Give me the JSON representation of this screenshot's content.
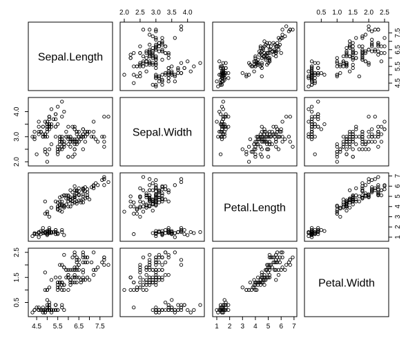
{
  "chart_data": {
    "type": "scatter",
    "variables": [
      "Sepal.Length",
      "Sepal.Width",
      "Petal.Length",
      "Petal.Width"
    ],
    "axis_ranges": {
      "Sepal.Length": [
        4.3,
        7.9
      ],
      "Sepal.Width": [
        2.0,
        4.4
      ],
      "Petal.Length": [
        1.0,
        6.9
      ],
      "Petal.Width": [
        0.1,
        2.5
      ]
    },
    "ticks": {
      "Sepal.Length": [
        "4.5",
        "5.0",
        "5.5",
        "6.0",
        "6.5",
        "7.0",
        "7.5"
      ],
      "Sepal.Width": [
        "2.0",
        "2.5",
        "3.0",
        "3.5",
        "4.0"
      ],
      "Petal.Length": [
        "1",
        "2",
        "3",
        "4",
        "5",
        "6",
        "7"
      ],
      "Petal.Width": [
        "0.5",
        "1.0",
        "1.5",
        "2.0",
        "2.5"
      ]
    },
    "bottom_tick_labels": {
      "Sepal.Length": [
        "4.5",
        "5.5",
        "6.5",
        "7.5"
      ],
      "Sepal.Width": [],
      "Petal.Length": [
        "1",
        "2",
        "3",
        "4",
        "5",
        "6",
        "7"
      ],
      "Petal.Width": []
    },
    "top_tick_labels": {
      "Sepal.Length": [],
      "Sepal.Width": [
        "2.0",
        "2.5",
        "3.0",
        "3.5",
        "4.0"
      ],
      "Petal.Length": [],
      "Petal.Width": [
        "0.5",
        "1.0",
        "1.5",
        "2.0",
        "2.5"
      ]
    },
    "left_tick_labels": {
      "Sepal.Length": [],
      "Sepal.Width": [
        "2.0",
        "3.0",
        "4.0"
      ],
      "Petal.Length": [],
      "Petal.Width": [
        "0.5",
        "1.5",
        "2.5"
      ]
    },
    "right_tick_labels": {
      "Sepal.Length": [
        "4.5",
        "5.5",
        "6.5",
        "7.5"
      ],
      "Sepal.Width": [],
      "Petal.Length": [
        "1",
        "2",
        "3",
        "4",
        "5",
        "6",
        "7"
      ],
      "Petal.Width": []
    },
    "points": [
      [
        5.1,
        3.5,
        1.4,
        0.2
      ],
      [
        4.9,
        3.0,
        1.4,
        0.2
      ],
      [
        4.7,
        3.2,
        1.3,
        0.2
      ],
      [
        4.6,
        3.1,
        1.5,
        0.2
      ],
      [
        5.0,
        3.6,
        1.4,
        0.2
      ],
      [
        5.4,
        3.9,
        1.7,
        0.4
      ],
      [
        4.6,
        3.4,
        1.4,
        0.3
      ],
      [
        5.0,
        3.4,
        1.5,
        0.2
      ],
      [
        4.4,
        2.9,
        1.4,
        0.2
      ],
      [
        4.9,
        3.1,
        1.5,
        0.1
      ],
      [
        5.4,
        3.7,
        1.5,
        0.2
      ],
      [
        4.8,
        3.4,
        1.6,
        0.2
      ],
      [
        4.8,
        3.0,
        1.4,
        0.1
      ],
      [
        4.3,
        3.0,
        1.1,
        0.1
      ],
      [
        5.8,
        4.0,
        1.2,
        0.2
      ],
      [
        5.7,
        4.4,
        1.5,
        0.4
      ],
      [
        5.4,
        3.9,
        1.3,
        0.4
      ],
      [
        5.1,
        3.5,
        1.4,
        0.3
      ],
      [
        5.7,
        3.8,
        1.7,
        0.3
      ],
      [
        5.1,
        3.8,
        1.5,
        0.3
      ],
      [
        5.4,
        3.4,
        1.7,
        0.2
      ],
      [
        5.1,
        3.7,
        1.5,
        0.4
      ],
      [
        4.6,
        3.6,
        1.0,
        0.2
      ],
      [
        5.1,
        3.3,
        1.7,
        0.5
      ],
      [
        4.8,
        3.4,
        1.9,
        0.2
      ],
      [
        5.0,
        3.0,
        1.6,
        0.2
      ],
      [
        5.0,
        3.4,
        1.6,
        0.4
      ],
      [
        5.2,
        3.5,
        1.5,
        0.2
      ],
      [
        5.2,
        3.4,
        1.4,
        0.2
      ],
      [
        4.7,
        3.2,
        1.6,
        0.2
      ],
      [
        4.8,
        3.1,
        1.6,
        0.2
      ],
      [
        5.4,
        3.4,
        1.5,
        0.4
      ],
      [
        5.2,
        4.1,
        1.5,
        0.1
      ],
      [
        5.5,
        4.2,
        1.4,
        0.2
      ],
      [
        4.9,
        3.1,
        1.5,
        0.2
      ],
      [
        5.0,
        3.2,
        1.2,
        0.2
      ],
      [
        5.5,
        3.5,
        1.3,
        0.2
      ],
      [
        4.9,
        3.6,
        1.4,
        0.1
      ],
      [
        4.4,
        3.0,
        1.3,
        0.2
      ],
      [
        5.1,
        3.4,
        1.5,
        0.2
      ],
      [
        5.0,
        3.5,
        1.3,
        0.3
      ],
      [
        4.5,
        2.3,
        1.3,
        0.3
      ],
      [
        4.4,
        3.2,
        1.3,
        0.2
      ],
      [
        5.0,
        3.5,
        1.6,
        0.6
      ],
      [
        5.1,
        3.8,
        1.9,
        0.4
      ],
      [
        4.8,
        3.0,
        1.4,
        0.3
      ],
      [
        5.1,
        3.8,
        1.6,
        0.2
      ],
      [
        4.6,
        3.2,
        1.4,
        0.2
      ],
      [
        5.3,
        3.7,
        1.5,
        0.2
      ],
      [
        5.0,
        3.3,
        1.4,
        0.2
      ],
      [
        7.0,
        3.2,
        4.7,
        1.4
      ],
      [
        6.4,
        3.2,
        4.5,
        1.5
      ],
      [
        6.9,
        3.1,
        4.9,
        1.5
      ],
      [
        5.5,
        2.3,
        4.0,
        1.3
      ],
      [
        6.5,
        2.8,
        4.6,
        1.5
      ],
      [
        5.7,
        2.8,
        4.5,
        1.3
      ],
      [
        6.3,
        3.3,
        4.7,
        1.6
      ],
      [
        4.9,
        2.4,
        3.3,
        1.0
      ],
      [
        6.6,
        2.9,
        4.6,
        1.3
      ],
      [
        5.2,
        2.7,
        3.9,
        1.4
      ],
      [
        5.0,
        2.0,
        3.5,
        1.0
      ],
      [
        5.9,
        3.0,
        4.2,
        1.5
      ],
      [
        6.0,
        2.2,
        4.0,
        1.0
      ],
      [
        6.1,
        2.9,
        4.7,
        1.4
      ],
      [
        5.6,
        2.9,
        3.6,
        1.3
      ],
      [
        6.7,
        3.1,
        4.4,
        1.4
      ],
      [
        5.6,
        3.0,
        4.5,
        1.5
      ],
      [
        5.8,
        2.7,
        4.1,
        1.0
      ],
      [
        6.2,
        2.2,
        4.5,
        1.5
      ],
      [
        5.6,
        2.5,
        3.9,
        1.1
      ],
      [
        5.9,
        3.2,
        4.8,
        1.8
      ],
      [
        6.1,
        2.8,
        4.0,
        1.3
      ],
      [
        6.3,
        2.5,
        4.9,
        1.5
      ],
      [
        6.1,
        2.8,
        4.7,
        1.2
      ],
      [
        6.4,
        2.9,
        4.3,
        1.3
      ],
      [
        6.6,
        3.0,
        4.4,
        1.4
      ],
      [
        6.8,
        2.8,
        4.8,
        1.4
      ],
      [
        6.7,
        3.0,
        5.0,
        1.7
      ],
      [
        6.0,
        2.9,
        4.5,
        1.5
      ],
      [
        5.7,
        2.6,
        3.5,
        1.0
      ],
      [
        5.5,
        2.4,
        3.8,
        1.1
      ],
      [
        5.5,
        2.4,
        3.7,
        1.0
      ],
      [
        5.8,
        2.7,
        3.9,
        1.2
      ],
      [
        6.0,
        2.7,
        5.1,
        1.6
      ],
      [
        5.4,
        3.0,
        4.5,
        1.5
      ],
      [
        6.0,
        3.4,
        4.5,
        1.6
      ],
      [
        6.7,
        3.1,
        4.7,
        1.5
      ],
      [
        6.3,
        2.3,
        4.4,
        1.3
      ],
      [
        5.6,
        3.0,
        4.1,
        1.3
      ],
      [
        5.5,
        2.5,
        4.0,
        1.3
      ],
      [
        5.5,
        2.6,
        4.4,
        1.2
      ],
      [
        6.1,
        3.0,
        4.6,
        1.4
      ],
      [
        5.8,
        2.6,
        4.0,
        1.2
      ],
      [
        5.0,
        2.3,
        3.3,
        1.0
      ],
      [
        5.6,
        2.7,
        4.2,
        1.3
      ],
      [
        5.7,
        3.0,
        4.2,
        1.2
      ],
      [
        5.7,
        2.9,
        4.2,
        1.3
      ],
      [
        6.2,
        2.9,
        4.3,
        1.3
      ],
      [
        5.1,
        2.5,
        3.0,
        1.1
      ],
      [
        5.7,
        2.8,
        4.1,
        1.3
      ],
      [
        6.3,
        3.3,
        6.0,
        2.5
      ],
      [
        5.8,
        2.7,
        5.1,
        1.9
      ],
      [
        7.1,
        3.0,
        5.9,
        2.1
      ],
      [
        6.3,
        2.9,
        5.6,
        1.8
      ],
      [
        6.5,
        3.0,
        5.8,
        2.2
      ],
      [
        7.6,
        3.0,
        6.6,
        2.1
      ],
      [
        4.9,
        2.5,
        4.5,
        1.7
      ],
      [
        7.3,
        2.9,
        6.3,
        1.8
      ],
      [
        6.7,
        2.5,
        5.8,
        1.8
      ],
      [
        7.2,
        3.6,
        6.1,
        2.5
      ],
      [
        6.5,
        3.2,
        5.1,
        2.0
      ],
      [
        6.4,
        2.7,
        5.3,
        1.9
      ],
      [
        6.8,
        3.0,
        5.5,
        2.1
      ],
      [
        5.7,
        2.5,
        5.0,
        2.0
      ],
      [
        5.8,
        2.8,
        5.1,
        2.4
      ],
      [
        6.4,
        3.2,
        5.3,
        2.3
      ],
      [
        6.5,
        3.0,
        5.5,
        1.8
      ],
      [
        7.7,
        3.8,
        6.7,
        2.2
      ],
      [
        7.7,
        2.6,
        6.9,
        2.3
      ],
      [
        6.0,
        2.2,
        5.0,
        1.5
      ],
      [
        6.9,
        3.2,
        5.7,
        2.3
      ],
      [
        5.6,
        2.8,
        4.9,
        2.0
      ],
      [
        7.7,
        2.8,
        6.7,
        2.0
      ],
      [
        6.3,
        2.7,
        4.9,
        1.8
      ],
      [
        6.7,
        3.3,
        5.7,
        2.1
      ],
      [
        7.2,
        3.2,
        6.0,
        1.8
      ],
      [
        6.2,
        2.8,
        4.8,
        1.8
      ],
      [
        6.1,
        3.0,
        4.9,
        1.8
      ],
      [
        6.4,
        2.8,
        5.6,
        2.1
      ],
      [
        7.2,
        3.0,
        5.8,
        1.6
      ],
      [
        7.4,
        2.8,
        6.1,
        1.9
      ],
      [
        7.9,
        3.8,
        6.4,
        2.0
      ],
      [
        6.4,
        2.8,
        5.6,
        2.2
      ],
      [
        6.3,
        2.8,
        5.1,
        1.5
      ],
      [
        6.1,
        2.6,
        5.6,
        1.4
      ],
      [
        7.7,
        3.0,
        6.1,
        2.3
      ],
      [
        6.3,
        3.4,
        5.6,
        2.4
      ],
      [
        6.4,
        3.1,
        5.5,
        1.8
      ],
      [
        6.0,
        3.0,
        4.8,
        1.8
      ],
      [
        6.9,
        3.1,
        5.4,
        2.1
      ],
      [
        6.7,
        3.1,
        5.6,
        2.4
      ],
      [
        6.9,
        3.1,
        5.1,
        2.3
      ],
      [
        5.8,
        2.7,
        5.1,
        1.9
      ],
      [
        6.8,
        3.2,
        5.9,
        2.3
      ],
      [
        6.7,
        3.3,
        5.7,
        2.5
      ],
      [
        6.7,
        3.0,
        5.2,
        2.3
      ],
      [
        6.3,
        2.5,
        5.0,
        1.9
      ],
      [
        6.5,
        3.0,
        5.2,
        2.0
      ],
      [
        6.2,
        3.4,
        5.4,
        2.3
      ],
      [
        5.9,
        3.0,
        5.1,
        1.8
      ]
    ]
  }
}
